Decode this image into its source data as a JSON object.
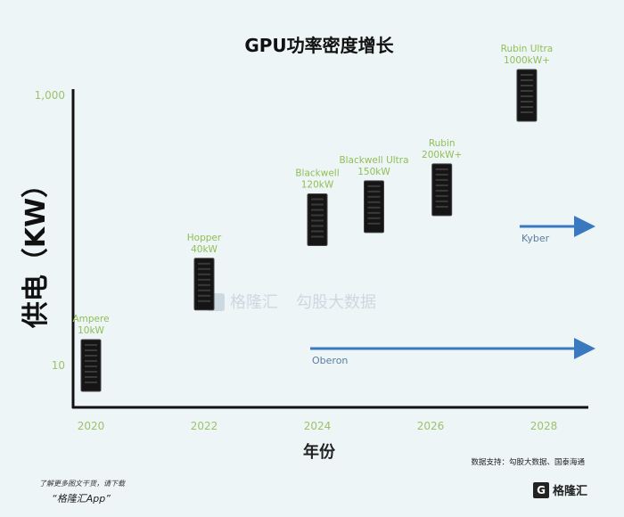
{
  "chart_data": {
    "type": "scatter",
    "title": "GPU功率密度增长",
    "xlabel": "年份",
    "ylabel": "供电（KW）",
    "y_scale": "log",
    "ylim": [
      5,
      1000
    ],
    "x_ticks": [
      "2020",
      "2022",
      "2024",
      "2026",
      "2028"
    ],
    "y_ticks": [
      "1,000",
      "10"
    ],
    "points": [
      {
        "name": "Ampere",
        "value_label": "10kW",
        "x": 2020,
        "y": 10
      },
      {
        "name": "Hopper",
        "value_label": "40kW",
        "x": 2022,
        "y": 40
      },
      {
        "name": "Blackwell",
        "value_label": "120kW",
        "x": 2024,
        "y": 120
      },
      {
        "name": "Blackwell Ultra",
        "value_label": "150kW",
        "x": 2025,
        "y": 150
      },
      {
        "name": "Rubin",
        "value_label": "200kW+",
        "x": 2026.2,
        "y": 200
      },
      {
        "name": "Rubin Ultra",
        "value_label": "1000kW+",
        "x": 2027.7,
        "y": 1000
      }
    ],
    "platforms": [
      {
        "name": "Oberon",
        "from_x": 2024
      },
      {
        "name": "Kyber",
        "from_x": 2027.7
      }
    ],
    "colors": {
      "labels": "#8fbf55",
      "arrows": "#3a78c0",
      "axes": "#111111"
    }
  },
  "watermark": {
    "brand": "格隆汇",
    "partner": "勾股大数据"
  },
  "footer": {
    "note": "了解更多图文干货，请下载",
    "app": "“格隆汇App”",
    "source": "数据支持：勾股大数据、国泰海通",
    "brand": "格隆汇",
    "brand_mark": "G"
  }
}
